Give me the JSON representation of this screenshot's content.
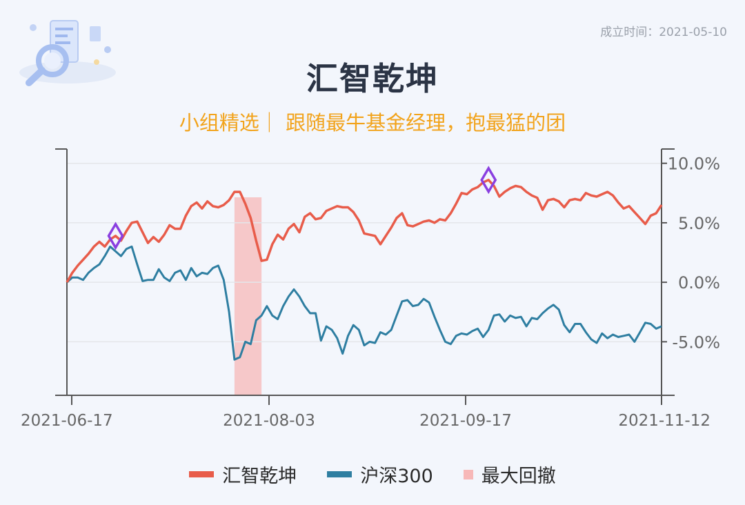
{
  "header": {
    "founded": "成立时间：2021-05-10",
    "title": "汇智乾坤",
    "subtitle": "小组精选｜ 跟随最牛基金经理，抱最猛的团"
  },
  "colors": {
    "fund": "#e85c4a",
    "index": "#2e7ea1",
    "drawdown": "#f7b8b8",
    "marker": "#8a3fe0"
  },
  "legend": {
    "fund": "汇智乾坤",
    "index": "沪深300",
    "drawdown": "最大回撤"
  },
  "chart_data": {
    "type": "line",
    "x_ticks": [
      "2021-06-17",
      "2021-08-03",
      "2021-09-17",
      "2021-11-12"
    ],
    "y_ticks": [
      "10.0%",
      "5.0%",
      "0.0%",
      "-5.0%"
    ],
    "y_tick_values": [
      10,
      5,
      0,
      -5
    ],
    "ylim": [
      -9.5,
      11.2
    ],
    "y_axis_side": "right",
    "grid": true,
    "legend_position": "bottom",
    "x_count": 111,
    "series": [
      {
        "name": "汇智乾坤",
        "color": "#e85c4a",
        "values": [
          0.0,
          0.8,
          1.4,
          1.9,
          2.4,
          3.0,
          3.4,
          3.0,
          3.6,
          3.9,
          3.5,
          4.3,
          5.0,
          5.1,
          4.2,
          3.3,
          3.8,
          3.4,
          4.0,
          4.8,
          4.5,
          4.5,
          5.6,
          6.4,
          6.7,
          6.2,
          6.8,
          6.4,
          6.3,
          6.5,
          6.9,
          7.6,
          7.6,
          6.6,
          5.4,
          3.5,
          1.8,
          1.9,
          3.2,
          4.0,
          3.6,
          4.5,
          4.9,
          4.2,
          5.5,
          5.8,
          5.3,
          5.4,
          6.0,
          6.2,
          6.4,
          6.3,
          6.3,
          5.9,
          5.2,
          4.1,
          4.0,
          3.9,
          3.2,
          3.9,
          4.6,
          5.4,
          5.8,
          4.8,
          4.7,
          4.9,
          5.1,
          5.2,
          5.0,
          5.3,
          5.2,
          5.8,
          6.6,
          7.5,
          7.4,
          7.8,
          8.0,
          8.4,
          8.6,
          8.1,
          7.2,
          7.6,
          7.9,
          8.1,
          8.0,
          7.6,
          7.3,
          7.1,
          6.1,
          6.9,
          7.0,
          6.8,
          6.3,
          6.9,
          7.0,
          6.9,
          7.5,
          7.3,
          7.2,
          7.4,
          7.6,
          7.3,
          6.7,
          6.2,
          6.4,
          5.9,
          5.4,
          4.9,
          5.6,
          5.8,
          6.5
        ]
      },
      {
        "name": "沪深300",
        "color": "#2e7ea1",
        "values": [
          0.0,
          0.4,
          0.4,
          0.2,
          0.8,
          1.2,
          1.5,
          2.2,
          3.0,
          2.6,
          2.2,
          2.8,
          3.0,
          1.5,
          0.1,
          0.2,
          0.2,
          1.1,
          0.4,
          0.1,
          0.8,
          1.0,
          0.2,
          1.2,
          0.5,
          0.8,
          0.7,
          1.2,
          1.4,
          0.2,
          -2.5,
          -6.5,
          -6.3,
          -5.0,
          -5.2,
          -3.2,
          -2.8,
          -2.0,
          -2.8,
          -3.1,
          -2.0,
          -1.2,
          -0.6,
          -1.2,
          -2.0,
          -2.6,
          -2.6,
          -4.9,
          -3.7,
          -4.0,
          -4.7,
          -6.0,
          -4.5,
          -3.6,
          -4.0,
          -5.3,
          -5.0,
          -5.1,
          -4.2,
          -4.4,
          -4.0,
          -2.8,
          -1.6,
          -1.5,
          -2.0,
          -1.9,
          -1.4,
          -1.7,
          -2.9,
          -4.0,
          -5.0,
          -5.2,
          -4.5,
          -4.3,
          -4.4,
          -4.1,
          -3.9,
          -4.6,
          -4.0,
          -2.8,
          -2.7,
          -3.3,
          -2.8,
          -3.0,
          -2.9,
          -3.7,
          -3.0,
          -3.1,
          -2.6,
          -2.2,
          -1.9,
          -2.3,
          -3.6,
          -4.2,
          -3.5,
          -3.5,
          -4.2,
          -4.8,
          -5.1,
          -4.3,
          -4.7,
          -4.4,
          -4.6,
          -4.5,
          -4.4,
          -5.0,
          -4.2,
          -3.4,
          -3.5,
          -3.9,
          -3.7
        ]
      }
    ],
    "drawdown_range": [
      31,
      36
    ],
    "marker_indices": [
      9,
      78
    ]
  }
}
